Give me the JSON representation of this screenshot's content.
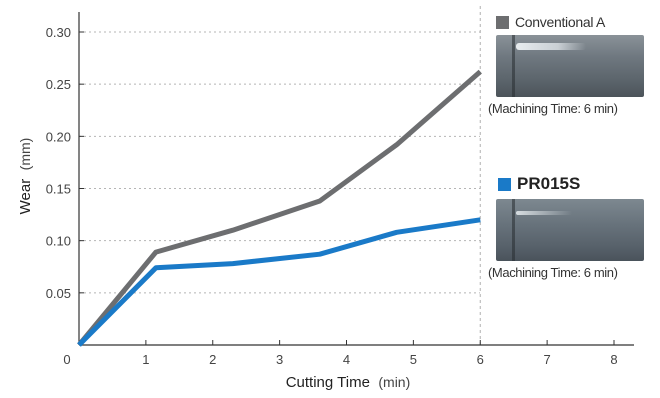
{
  "chart_data": {
    "type": "line",
    "xlabel": "Cutting Time",
    "xlabel_unit": "(min)",
    "ylabel": "Wear",
    "ylabel_unit": "(mm)",
    "xlim": [
      0,
      8
    ],
    "ylim": [
      0,
      0.3
    ],
    "xticks": [
      "0",
      "1",
      "2",
      "3",
      "4",
      "5",
      "6",
      "7",
      "8"
    ],
    "yticks": [
      "0.05",
      "0.10",
      "0.15",
      "0.20",
      "0.25",
      "0.30"
    ],
    "grid": "horizontal dotted",
    "reference_line_x": 6,
    "series": [
      {
        "name": "Conventional A",
        "color": "#6d6e70",
        "x": [
          0,
          1.15,
          2.3,
          3.6,
          4.75,
          6.0
        ],
        "y": [
          0,
          0.089,
          0.11,
          0.138,
          0.192,
          0.262
        ]
      },
      {
        "name": "PR015S",
        "color": "#1a7ac8",
        "x": [
          0,
          1.15,
          2.3,
          3.6,
          4.75,
          6.0
        ],
        "y": [
          0,
          0.074,
          0.078,
          0.087,
          0.108,
          0.12
        ]
      }
    ]
  },
  "legend": {
    "a": {
      "label": "Conventional A",
      "caption": "(Machining Time: 6 min)",
      "color": "#6d6e70"
    },
    "b": {
      "label": "PR015S",
      "caption": "(Machining Time: 6 min)",
      "color": "#1a7ac8"
    }
  }
}
